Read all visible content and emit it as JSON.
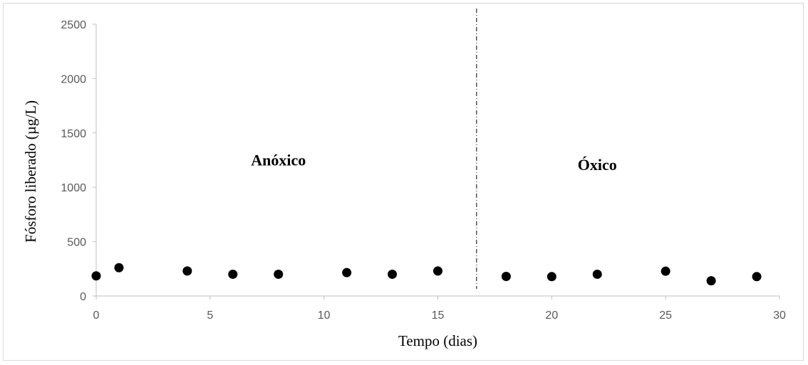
{
  "chart_data": {
    "type": "scatter",
    "title": "",
    "xlabel": "Tempo (dias)",
    "ylabel": "Fósforo liberado (µg/L)",
    "xlim": [
      0,
      30
    ],
    "ylim": [
      0,
      2500
    ],
    "x_ticks": [
      0,
      5,
      10,
      15,
      20,
      25,
      30
    ],
    "y_ticks": [
      0,
      500,
      1000,
      1500,
      2000,
      2500
    ],
    "grid": false,
    "marker_color": "#000000",
    "series": [
      {
        "x": [
          0,
          1,
          4,
          6,
          8,
          11,
          13,
          15,
          18,
          20,
          22,
          25,
          27,
          29
        ],
        "y": [
          185,
          260,
          230,
          200,
          200,
          215,
          200,
          230,
          180,
          178,
          200,
          228,
          140,
          178
        ]
      }
    ],
    "divider_x": 16.7,
    "annotations": [
      {
        "text": "Anóxico",
        "x": 8,
        "y": 1200
      },
      {
        "text": "Óxico",
        "x": 22,
        "y": 1160
      }
    ]
  }
}
